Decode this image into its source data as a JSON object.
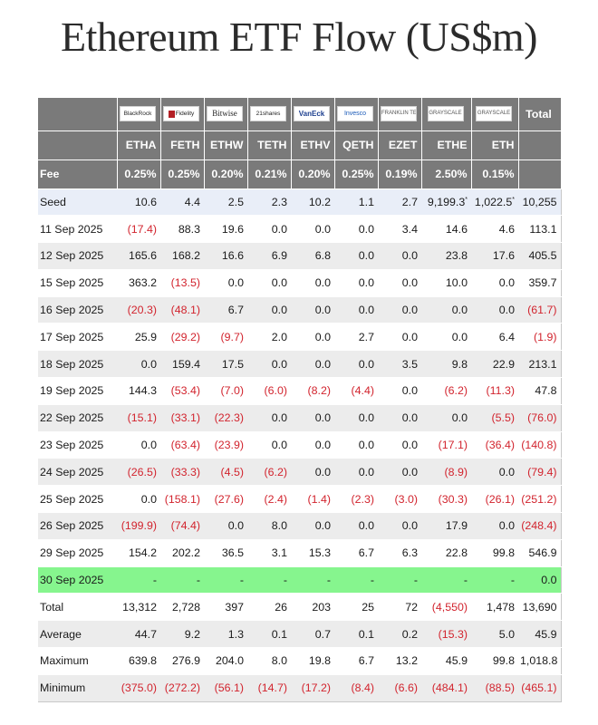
{
  "title": "Ethereum ETF Flow (US$m)",
  "issuers": [
    {
      "name": "BlackRock",
      "style": "blackrock"
    },
    {
      "name": "Fidelity",
      "style": "fidelity"
    },
    {
      "name": "Bitwise",
      "style": "bitwise"
    },
    {
      "name": "21shares",
      "style": "plain"
    },
    {
      "name": "VanEck",
      "style": "vaneck"
    },
    {
      "name": "Invesco",
      "style": "invesco"
    },
    {
      "name": "FRANKLIN TEMPLETON",
      "style": "gray"
    },
    {
      "name": "GRAYSCALE",
      "style": "gray"
    },
    {
      "name": "GRAYSCALE",
      "style": "gray"
    }
  ],
  "total_header": "Total",
  "tickers": [
    "ETHA",
    "FETH",
    "ETHW",
    "TETH",
    "ETHV",
    "QETH",
    "EZET",
    "ETHE",
    "ETH"
  ],
  "fee": {
    "label": "Fee",
    "values": [
      "0.25%",
      "0.25%",
      "0.20%",
      "0.21%",
      "0.20%",
      "0.25%",
      "0.19%",
      "2.50%",
      "0.15%"
    ]
  },
  "seed": {
    "label": "Seed",
    "values": [
      "10.6",
      "4.4",
      "2.5",
      "2.3",
      "10.2",
      "1.1",
      "2.7",
      "9,199.3",
      "1,022.5",
      "10,255"
    ],
    "starred": [
      7,
      8
    ],
    "star": "*"
  },
  "rows": [
    {
      "label": "11 Sep 2025",
      "values": [
        "(17.4)",
        "88.3",
        "19.6",
        "0.0",
        "0.0",
        "0.0",
        "3.4",
        "14.6",
        "4.6",
        "113.1"
      ]
    },
    {
      "label": "12 Sep 2025",
      "values": [
        "165.6",
        "168.2",
        "16.6",
        "6.9",
        "6.8",
        "0.0",
        "0.0",
        "23.8",
        "17.6",
        "405.5"
      ]
    },
    {
      "label": "15 Sep 2025",
      "values": [
        "363.2",
        "(13.5)",
        "0.0",
        "0.0",
        "0.0",
        "0.0",
        "0.0",
        "10.0",
        "0.0",
        "359.7"
      ]
    },
    {
      "label": "16 Sep 2025",
      "values": [
        "(20.3)",
        "(48.1)",
        "6.7",
        "0.0",
        "0.0",
        "0.0",
        "0.0",
        "0.0",
        "0.0",
        "(61.7)"
      ]
    },
    {
      "label": "17 Sep 2025",
      "values": [
        "25.9",
        "(29.2)",
        "(9.7)",
        "2.0",
        "0.0",
        "2.7",
        "0.0",
        "0.0",
        "6.4",
        "(1.9)"
      ]
    },
    {
      "label": "18 Sep 2025",
      "values": [
        "0.0",
        "159.4",
        "17.5",
        "0.0",
        "0.0",
        "0.0",
        "3.5",
        "9.8",
        "22.9",
        "213.1"
      ]
    },
    {
      "label": "19 Sep 2025",
      "values": [
        "144.3",
        "(53.4)",
        "(7.0)",
        "(6.0)",
        "(8.2)",
        "(4.4)",
        "0.0",
        "(6.2)",
        "(11.3)",
        "47.8"
      ]
    },
    {
      "label": "22 Sep 2025",
      "values": [
        "(15.1)",
        "(33.1)",
        "(22.3)",
        "0.0",
        "0.0",
        "0.0",
        "0.0",
        "0.0",
        "(5.5)",
        "(76.0)"
      ]
    },
    {
      "label": "23 Sep 2025",
      "values": [
        "0.0",
        "(63.4)",
        "(23.9)",
        "0.0",
        "0.0",
        "0.0",
        "0.0",
        "(17.1)",
        "(36.4)",
        "(140.8)"
      ]
    },
    {
      "label": "24 Sep 2025",
      "values": [
        "(26.5)",
        "(33.3)",
        "(4.5)",
        "(6.2)",
        "0.0",
        "0.0",
        "0.0",
        "(8.9)",
        "0.0",
        "(79.4)"
      ]
    },
    {
      "label": "25 Sep 2025",
      "values": [
        "0.0",
        "(158.1)",
        "(27.6)",
        "(2.4)",
        "(1.4)",
        "(2.3)",
        "(3.0)",
        "(30.3)",
        "(26.1)",
        "(251.2)"
      ]
    },
    {
      "label": "26 Sep 2025",
      "values": [
        "(199.9)",
        "(74.4)",
        "0.0",
        "8.0",
        "0.0",
        "0.0",
        "0.0",
        "17.9",
        "0.0",
        "(248.4)"
      ]
    },
    {
      "label": "29 Sep 2025",
      "values": [
        "154.2",
        "202.2",
        "36.5",
        "3.1",
        "15.3",
        "6.7",
        "6.3",
        "22.8",
        "99.8",
        "546.9"
      ]
    },
    {
      "label": "30 Sep 2025",
      "values": [
        "-",
        "-",
        "-",
        "-",
        "-",
        "-",
        "-",
        "-",
        "-",
        "0.0"
      ],
      "highlight": true
    }
  ],
  "summary": [
    {
      "label": "Total",
      "values": [
        "13,312",
        "2,728",
        "397",
        "26",
        "203",
        "25",
        "72",
        "(4,550)",
        "1,478",
        "13,690"
      ]
    },
    {
      "label": "Average",
      "values": [
        "44.7",
        "9.2",
        "1.3",
        "0.1",
        "0.7",
        "0.1",
        "0.2",
        "(15.3)",
        "5.0",
        "45.9"
      ]
    },
    {
      "label": "Maximum",
      "values": [
        "639.8",
        "276.9",
        "204.0",
        "8.0",
        "19.8",
        "6.7",
        "13.2",
        "45.9",
        "99.8",
        "1,018.8"
      ]
    },
    {
      "label": "Minimum",
      "values": [
        "(375.0)",
        "(272.2)",
        "(56.1)",
        "(14.7)",
        "(17.2)",
        "(8.4)",
        "(6.6)",
        "(484.1)",
        "(88.5)",
        "(465.1)"
      ]
    }
  ],
  "colors": {
    "header_bg": "#7a7a7a",
    "negative": "#d2242e",
    "seed_bg": "#e9eef8",
    "highlight_bg": "#86f58e",
    "stripe_bg": "#ececec"
  }
}
